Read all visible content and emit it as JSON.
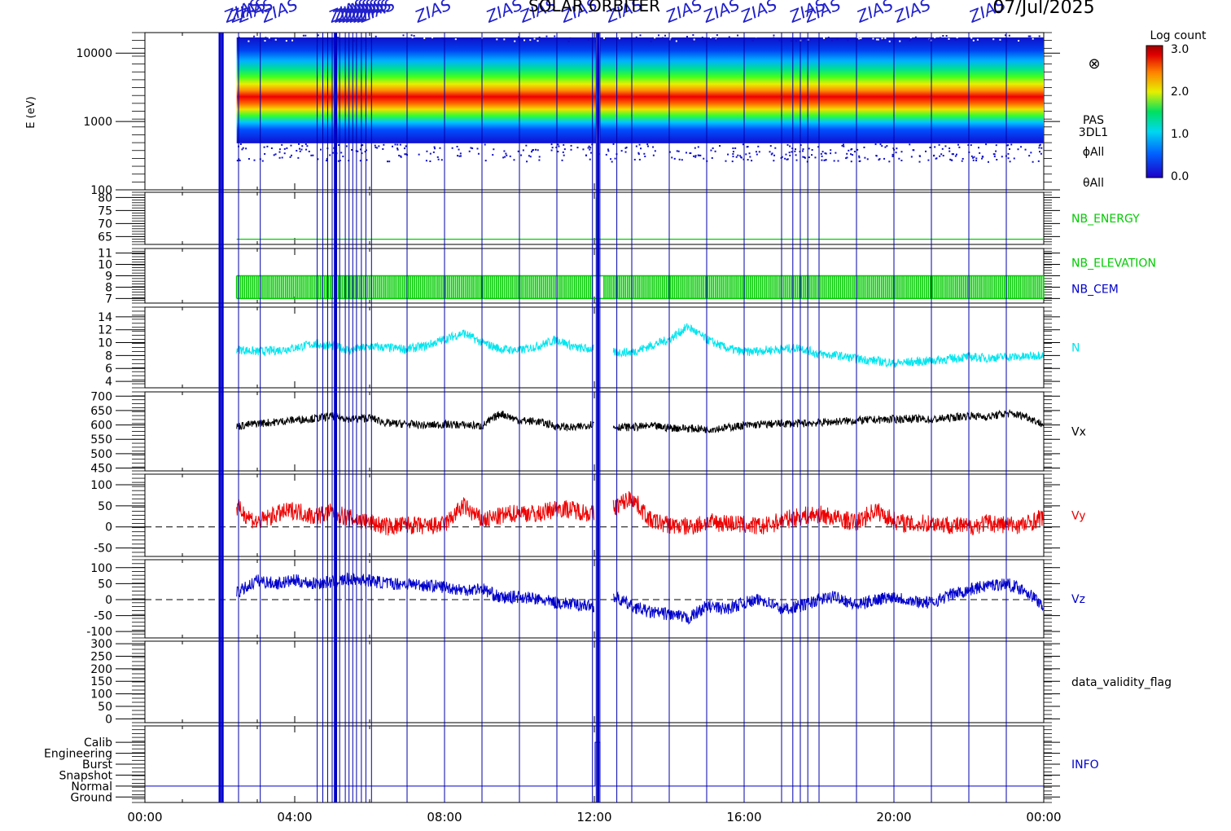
{
  "chart_data": {
    "type": "line",
    "date": "07/Jul/2025",
    "header_marks": [
      "ZIAS",
      "ZIAS",
      "ZIAS",
      "ZIAS",
      "ZIAS",
      "ZIAS",
      "ZIAS",
      "ZIAS",
      "ZIAS",
      "ZIAS",
      "ZIAS",
      "ZIAS",
      "ZIAS",
      "ZIAS",
      "ZIAS",
      "ZIAS",
      "ZIAS",
      "ZIAS",
      "ZIAS",
      "ZIAS",
      "ZIAS",
      "ZIAS",
      "ZIAS",
      "ZIAS",
      "ZIAS",
      "ZIAS"
    ],
    "header_title": "SOLAR ORBITER",
    "x": {
      "range_hours": [
        0,
        24
      ],
      "ticks_hours": [
        0,
        4,
        8,
        12,
        16,
        20,
        24
      ],
      "tick_labels": [
        "00:00",
        "04:00",
        "08:00",
        "12:00",
        "16:00",
        "20:00",
        "00:00"
      ]
    },
    "event_lines_hours": [
      2.5,
      3.08,
      4.6,
      4.75,
      4.88,
      5.0,
      5.12,
      5.2,
      5.35,
      5.45,
      5.55,
      5.65,
      5.78,
      5.9,
      6.05,
      7.0,
      8.0,
      9.0,
      10.0,
      11.0,
      11.95,
      12.05,
      12.15,
      12.6,
      13.0,
      14.0,
      15.0,
      16.0,
      17.0,
      17.3,
      17.5,
      17.7,
      18.0,
      19.0,
      20.0,
      21.0,
      22.0,
      23.0
    ],
    "thick_lines_hours": [
      2.07,
      2.0,
      5.08,
      12.1
    ],
    "panels": [
      {
        "id": "spectrogram",
        "ylabel": "E (eV)",
        "yscale": "log",
        "ylim": [
          100,
          20000
        ],
        "yticks": [
          100,
          1000,
          10000
        ],
        "ytick_labels": [
          "100",
          "1000",
          "10000"
        ],
        "right_labels": [
          "PAS",
          "3DL1",
          "ϕAll",
          "θAll"
        ],
        "symbol": "⊗",
        "colorbar": {
          "label": "Log count",
          "range": [
            0,
            3
          ],
          "ticks": [
            "0.0",
            "1.0",
            "2.0",
            "3.0"
          ]
        },
        "band_center_ev": 1900,
        "band_upper_ev": 17000,
        "band_lower_ev": 480,
        "data_start_hours": 2.45
      },
      {
        "id": "nb_energy",
        "ylim": [
          62,
          82
        ],
        "yticks": [
          65,
          70,
          75,
          80
        ],
        "ytick_labels": [
          "65",
          "70",
          "75",
          "80"
        ],
        "right_labels": [
          "NB_ENERGY"
        ],
        "colors": [
          "#00cc00"
        ],
        "value": 64
      },
      {
        "id": "nb_elevation",
        "ylim": [
          6.6,
          11.4
        ],
        "yticks": [
          7,
          8,
          9,
          10,
          11
        ],
        "ytick_labels": [
          "7",
          "8",
          "9",
          "10",
          "11"
        ],
        "right_labels": [
          "NB_ELEVATION",
          "NB_CEM"
        ],
        "colors": [
          "#00cc00",
          "#0000cc"
        ],
        "range": [
          7,
          9
        ]
      },
      {
        "id": "N",
        "ylim": [
          3,
          15.5
        ],
        "yticks": [
          4,
          6,
          8,
          10,
          12,
          14
        ],
        "ytick_labels": [
          "4",
          "6",
          "8",
          "10",
          "12",
          "14"
        ],
        "right_labels": [
          "N"
        ],
        "colors": [
          "#00e5ee"
        ],
        "series_hours": [
          2.45,
          3,
          3.5,
          4,
          4.5,
          5,
          5.5,
          6,
          6.5,
          7,
          7.5,
          8,
          8.5,
          9,
          9.5,
          10,
          10.5,
          11,
          11.5,
          12,
          12.2,
          12.5,
          13,
          13.5,
          14,
          14.5,
          15,
          15.5,
          16,
          16.5,
          17,
          17.5,
          18,
          18.5,
          19,
          19.5,
          20,
          20.5,
          21,
          21.5,
          22,
          22.5,
          23,
          23.5,
          24
        ],
        "series_values": [
          9,
          8.6,
          8.8,
          9.2,
          9.8,
          9.5,
          8.8,
          9.4,
          9.2,
          9.0,
          9.5,
          10.5,
          11.5,
          10.0,
          9,
          8.8,
          9.5,
          10.5,
          9.2,
          9.0,
          null,
          8.5,
          8.5,
          9.5,
          10.5,
          12.5,
          10.5,
          9.2,
          8.5,
          8.8,
          9.0,
          9.2,
          8.2,
          8.0,
          7.5,
          7.2,
          6.8,
          7.0,
          7.2,
          7.5,
          7.8,
          7.6,
          7.8,
          7.8,
          8.2
        ],
        "noise": 0.7
      },
      {
        "id": "Vx",
        "ylim": [
          440,
          715
        ],
        "yticks": [
          450,
          500,
          550,
          600,
          650,
          700
        ],
        "ytick_labels": [
          "450",
          "500",
          "550",
          "600",
          "650",
          "700"
        ],
        "right_labels": [
          "Vx"
        ],
        "colors": [
          "#000000"
        ],
        "series_hours": [
          2.45,
          3,
          3.5,
          4,
          4.5,
          5,
          5.5,
          6,
          6.5,
          7,
          7.5,
          8,
          8.5,
          9,
          9.5,
          10,
          10.5,
          11,
          11.5,
          12,
          12.2,
          12.5,
          13,
          13.5,
          14,
          14.5,
          15,
          15.5,
          16,
          16.5,
          17,
          17.5,
          18,
          18.5,
          19,
          19.5,
          20,
          20.5,
          21,
          21.5,
          22,
          22.5,
          23,
          23.5,
          24
        ],
        "series_values": [
          595,
          605,
          610,
          618,
          622,
          630,
          620,
          625,
          605,
          603,
          598,
          602,
          600,
          596,
          640,
          615,
          612,
          595,
          590,
          605,
          null,
          593,
          592,
          596,
          590,
          588,
          585,
          590,
          598,
          602,
          605,
          605,
          608,
          612,
          615,
          618,
          620,
          622,
          618,
          625,
          632,
          628,
          640,
          632,
          600
        ],
        "noise": 14
      },
      {
        "id": "Vy",
        "ylim": [
          -70,
          125
        ],
        "yticks": [
          -50,
          0,
          50,
          100
        ],
        "ytick_labels": [
          "-50",
          "0",
          "50",
          "100"
        ],
        "right_labels": [
          "Vy"
        ],
        "colors": [
          "#ee0000"
        ],
        "zero_line": true,
        "series_hours": [
          2.45,
          3,
          3.5,
          4,
          4.5,
          5,
          5.5,
          6,
          6.5,
          7,
          7.5,
          8,
          8.5,
          9,
          9.5,
          10,
          10.5,
          11,
          11.5,
          12,
          12.2,
          12.5,
          13,
          13.5,
          14,
          14.5,
          15,
          15.5,
          16,
          16.5,
          17,
          17.5,
          18,
          18.5,
          19,
          19.5,
          20,
          20.5,
          21,
          21.5,
          22,
          22.5,
          23,
          23.5,
          24
        ],
        "series_values": [
          45,
          10,
          30,
          40,
          25,
          35,
          20,
          10,
          0,
          5,
          0,
          5,
          50,
          15,
          25,
          35,
          30,
          45,
          40,
          30,
          null,
          45,
          70,
          15,
          5,
          0,
          10,
          10,
          5,
          0,
          15,
          25,
          30,
          20,
          10,
          40,
          15,
          5,
          10,
          5,
          0,
          10,
          5,
          5,
          25
        ],
        "noise": 22
      },
      {
        "id": "Vz",
        "ylim": [
          -120,
          125
        ],
        "yticks": [
          -100,
          -50,
          0,
          50,
          100
        ],
        "ytick_labels": [
          "-100",
          "-50",
          "0",
          "50",
          "100"
        ],
        "right_labels": [
          "Vz"
        ],
        "colors": [
          "#0000cc"
        ],
        "zero_line": true,
        "series_hours": [
          2.45,
          3,
          3.5,
          4,
          4.5,
          5,
          5.5,
          6,
          6.5,
          7,
          7.5,
          8,
          8.5,
          9,
          9.5,
          10,
          10.5,
          11,
          11.5,
          12,
          12.2,
          12.5,
          13,
          13.5,
          14,
          14.5,
          15,
          15.5,
          16,
          16.5,
          17,
          17.5,
          18,
          18.5,
          19,
          19.5,
          20,
          20.5,
          21,
          21.5,
          22,
          22.5,
          23,
          23.5,
          24
        ],
        "series_values": [
          20,
          60,
          50,
          60,
          50,
          55,
          65,
          60,
          50,
          50,
          45,
          40,
          30,
          35,
          5,
          10,
          0,
          -10,
          -15,
          -20,
          null,
          10,
          -20,
          -40,
          -45,
          -60,
          -20,
          -30,
          -10,
          0,
          -30,
          -20,
          0,
          10,
          -20,
          0,
          10,
          -5,
          -10,
          15,
          30,
          45,
          50,
          30,
          -20
        ],
        "noise": 20
      },
      {
        "id": "data_validity_flag",
        "ylim": [
          -15,
          310
        ],
        "yticks": [
          0,
          50,
          100,
          150,
          200,
          250,
          300
        ],
        "ytick_labels": [
          "0",
          "50",
          "100",
          "150",
          "200",
          "250",
          "300"
        ],
        "right_labels": [
          "data_validity_flag"
        ],
        "colors": [
          "#000000"
        ]
      },
      {
        "id": "INFO",
        "ylim": [
          -0.5,
          6.5
        ],
        "yticks": [
          0,
          1,
          2,
          3,
          4,
          5
        ],
        "ytick_labels": [
          "Ground",
          "Normal",
          "Snapshot",
          "Burst",
          "Engineering",
          "Calib"
        ],
        "right_labels": [
          "INFO"
        ],
        "colors": [
          "#0000cc"
        ]
      }
    ]
  }
}
